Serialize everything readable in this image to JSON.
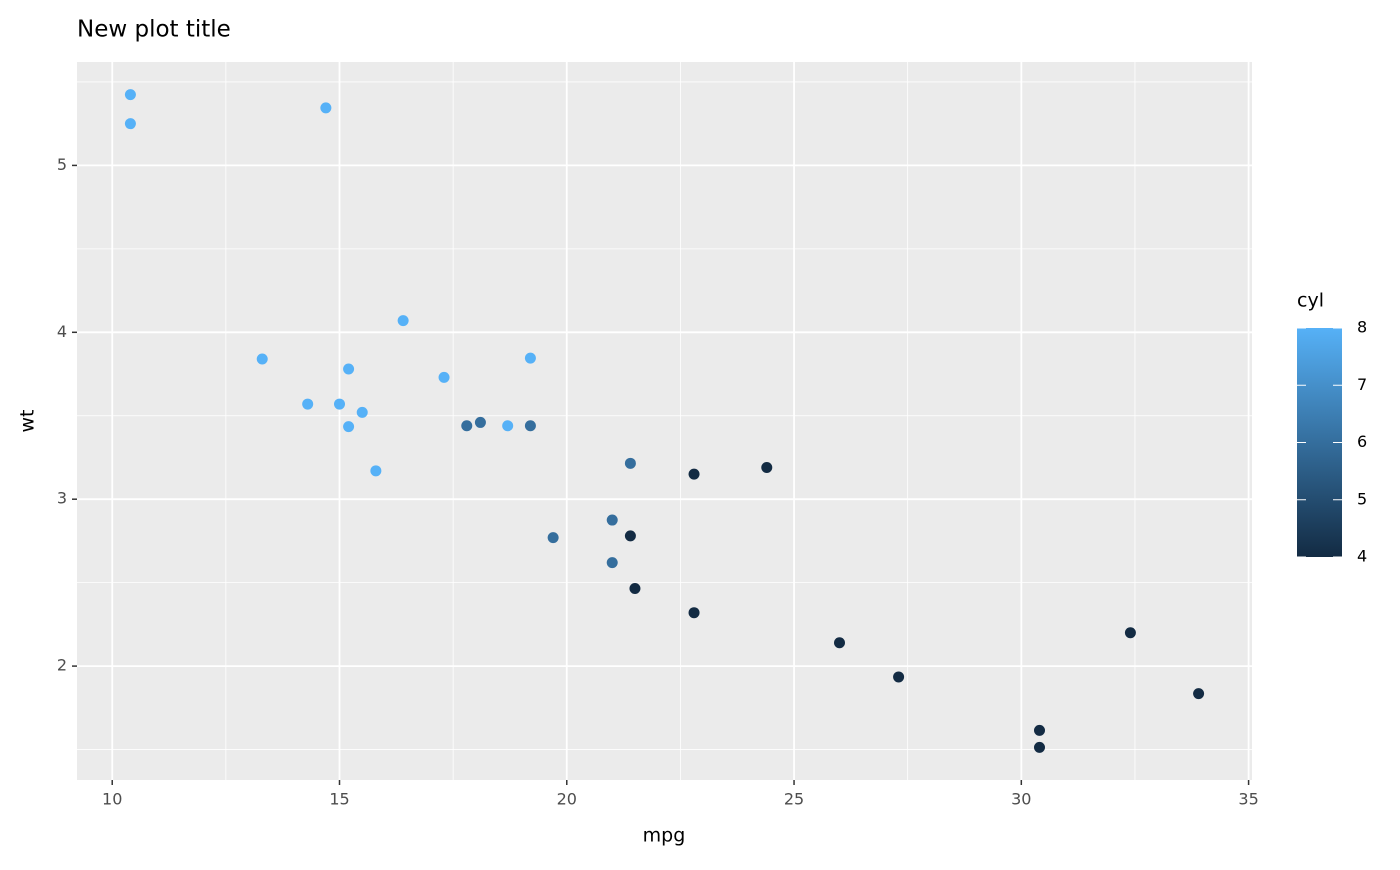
{
  "chart_data": {
    "type": "scatter",
    "title": "New plot title",
    "x_label": "mpg",
    "y_label": "wt",
    "x": [
      21.0,
      21.0,
      22.8,
      21.4,
      18.7,
      18.1,
      14.3,
      24.4,
      22.8,
      19.2,
      17.8,
      16.4,
      17.3,
      15.2,
      10.4,
      10.4,
      14.7,
      32.4,
      30.4,
      33.9,
      21.5,
      15.5,
      15.2,
      13.3,
      19.2,
      27.3,
      26.0,
      30.4,
      15.8,
      19.7,
      15.0,
      21.4
    ],
    "values": [
      2.62,
      2.875,
      2.32,
      3.215,
      3.44,
      3.46,
      3.57,
      3.19,
      3.15,
      3.44,
      3.44,
      4.07,
      3.73,
      3.78,
      5.25,
      5.424,
      5.345,
      2.2,
      1.615,
      1.835,
      2.465,
      3.52,
      3.435,
      3.84,
      3.845,
      1.935,
      2.14,
      1.513,
      3.17,
      2.77,
      3.57,
      2.78
    ],
    "color_values": [
      6,
      6,
      4,
      6,
      8,
      6,
      8,
      4,
      4,
      6,
      6,
      8,
      8,
      8,
      8,
      8,
      8,
      4,
      4,
      4,
      4,
      8,
      8,
      8,
      8,
      4,
      4,
      4,
      8,
      6,
      8,
      4
    ],
    "xlim": [
      9.225,
      35.075
    ],
    "xticks": [
      10,
      15,
      20,
      25,
      30,
      35
    ],
    "x_minor": [
      12.5,
      17.5,
      22.5,
      27.5,
      32.5
    ],
    "ylim": [
      1.3175,
      5.6196
    ],
    "yticks": [
      2,
      3,
      4,
      5
    ],
    "y_minor": [
      1.5,
      2.5,
      3.5,
      4.5,
      5.5
    ],
    "grid": true,
    "colorbar": {
      "title": "cyl",
      "limits": [
        4,
        8
      ],
      "ticks": [
        4,
        5,
        6,
        7,
        8
      ],
      "low": "#132B43",
      "high": "#56B1F7"
    }
  }
}
